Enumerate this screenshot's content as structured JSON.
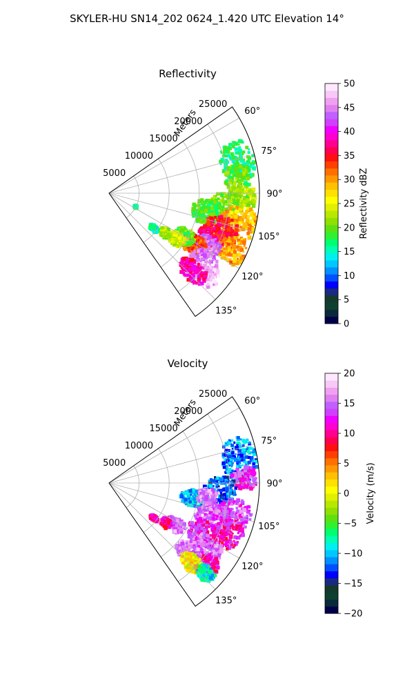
{
  "figure_title": "SKYLER-HU  SN14_202  0624_1.420 UTC Elevation 14°",
  "chart_data": [
    {
      "type": "heatmap",
      "title": "Reflectivity",
      "radial_axis_label": "Meters",
      "radial_ticks": [
        5000,
        10000,
        15000,
        20000,
        25000
      ],
      "radial_tick_labels": [
        "5000",
        "10000",
        "15000",
        "20000",
        "25000"
      ],
      "r_max": 25000,
      "azimuth_range": [
        55,
        145
      ],
      "azimuth_ticks": [
        60,
        75,
        90,
        105,
        120,
        135
      ],
      "azimuth_tick_labels": [
        "60°",
        "75°",
        "90°",
        "105°",
        "120°",
        "135°"
      ],
      "grid": true,
      "colorbar": {
        "label": "Reflectivity dBZ",
        "min": 0,
        "max": 50,
        "ticks": [
          0,
          5,
          10,
          15,
          20,
          25,
          30,
          35,
          40,
          45,
          50
        ],
        "tick_labels": [
          "0",
          "5",
          "10",
          "15",
          "20",
          "25",
          "30",
          "35",
          "40",
          "45",
          "50"
        ],
        "colors": [
          "#00004a",
          "#0a2a3a",
          "#0e4030",
          "#133a2a",
          "#1a2a80",
          "#0000ff",
          "#0050ff",
          "#0090ff",
          "#00c8ff",
          "#00f0f0",
          "#00ffb0",
          "#00ff70",
          "#30f030",
          "#60e010",
          "#90e000",
          "#b8e800",
          "#e0f000",
          "#ffff00",
          "#ffe000",
          "#ffc000",
          "#ff9800",
          "#ff7000",
          "#ff4000",
          "#ff1010",
          "#ff0050",
          "#ff0090",
          "#ff00d0",
          "#f000ff",
          "#d040ff",
          "#c060ff",
          "#e080f0",
          "#f0a0f0",
          "#f8c8f8",
          "#ffe8ff"
        ]
      },
      "blobs": [
        {
          "az": 76,
          "r": 22000,
          "dr": 3500,
          "da": 11,
          "v": 17
        },
        {
          "az": 84,
          "r": 21500,
          "dr": 2500,
          "da": 8,
          "v": 20
        },
        {
          "az": 92,
          "r": 22500,
          "dr": 2500,
          "da": 6,
          "v": 22
        },
        {
          "az": 97,
          "r": 19500,
          "dr": 3500,
          "da": 9,
          "v": 21
        },
        {
          "az": 101,
          "r": 16500,
          "dr": 3000,
          "da": 9,
          "v": 19
        },
        {
          "az": 103,
          "r": 22000,
          "dr": 4000,
          "da": 9,
          "v": 29
        },
        {
          "az": 108,
          "r": 19500,
          "dr": 3500,
          "da": 8,
          "v": 35
        },
        {
          "az": 113,
          "r": 18500,
          "dr": 3000,
          "da": 7,
          "v": 36
        },
        {
          "az": 115,
          "r": 22500,
          "dr": 3000,
          "da": 7,
          "v": 30
        },
        {
          "az": 118,
          "r": 18500,
          "dr": 2800,
          "da": 6,
          "v": 44
        },
        {
          "az": 121,
          "r": 16500,
          "dr": 2600,
          "da": 7,
          "v": 33
        },
        {
          "az": 126,
          "r": 19500,
          "dr": 3000,
          "da": 7,
          "v": 44
        },
        {
          "az": 130,
          "r": 21000,
          "dr": 3000,
          "da": 6,
          "v": 48
        },
        {
          "az": 133,
          "r": 19000,
          "dr": 3200,
          "da": 6,
          "v": 38
        },
        {
          "az": 120,
          "r": 14500,
          "dr": 2200,
          "da": 7,
          "v": 20
        },
        {
          "az": 124,
          "r": 13500,
          "dr": 2000,
          "da": 6,
          "v": 24
        },
        {
          "az": 125,
          "r": 11500,
          "dr": 1200,
          "da": 5,
          "v": 22
        },
        {
          "az": 128,
          "r": 9500,
          "dr": 1000,
          "da": 4,
          "v": 16
        },
        {
          "az": 117,
          "r": 5000,
          "dr": 300,
          "da": 3,
          "v": 16
        }
      ]
    },
    {
      "type": "heatmap",
      "title": "Velocity",
      "radial_axis_label": "Meters",
      "radial_ticks": [
        5000,
        10000,
        15000,
        20000,
        25000
      ],
      "radial_tick_labels": [
        "5000",
        "10000",
        "15000",
        "20000",
        "25000"
      ],
      "r_max": 25000,
      "azimuth_range": [
        55,
        145
      ],
      "azimuth_ticks": [
        60,
        75,
        90,
        105,
        120,
        135
      ],
      "azimuth_tick_labels": [
        "60°",
        "75°",
        "90°",
        "105°",
        "120°",
        "135°"
      ],
      "grid": true,
      "colorbar": {
        "label": "Velocity (m/s)",
        "min": -20,
        "max": 20,
        "ticks": [
          -20,
          -15,
          -10,
          -5,
          0,
          5,
          10,
          15,
          20
        ],
        "tick_labels": [
          "−20",
          "−15",
          "−10",
          "−5",
          "0",
          "5",
          "10",
          "15",
          "20"
        ],
        "colors": [
          "#00004a",
          "#0a2a3a",
          "#0e4030",
          "#133a2a",
          "#1a2a80",
          "#0000ff",
          "#0050ff",
          "#0090ff",
          "#00c8ff",
          "#00f0f0",
          "#00ffb0",
          "#00ff70",
          "#30f030",
          "#60e010",
          "#90e000",
          "#b8e800",
          "#e0f000",
          "#ffff00",
          "#ffe000",
          "#ffc000",
          "#ff9800",
          "#ff7000",
          "#ff4000",
          "#ff1010",
          "#ff0050",
          "#ff0090",
          "#ff00d0",
          "#f000ff",
          "#d040ff",
          "#c060ff",
          "#e080f0",
          "#f0a0f0",
          "#f8c8f8",
          "#ffe8ff"
        ]
      },
      "blobs": [
        {
          "az": 80,
          "r": 22000,
          "dr": 3500,
          "da": 12,
          "v": -11
        },
        {
          "az": 88,
          "r": 22500,
          "dr": 2500,
          "da": 6,
          "v": 13
        },
        {
          "az": 94,
          "r": 18500,
          "dr": 3500,
          "da": 9,
          "v": -12
        },
        {
          "az": 100,
          "r": 14500,
          "dr": 3000,
          "da": 7,
          "v": -10
        },
        {
          "az": 104,
          "r": 21500,
          "dr": 3500,
          "da": 8,
          "v": 14
        },
        {
          "az": 108,
          "r": 18000,
          "dr": 3500,
          "da": 8,
          "v": 15
        },
        {
          "az": 113,
          "r": 21500,
          "dr": 3000,
          "da": 8,
          "v": 11
        },
        {
          "az": 118,
          "r": 17500,
          "dr": 3000,
          "da": 8,
          "v": 12
        },
        {
          "az": 124,
          "r": 19500,
          "dr": 3500,
          "da": 8,
          "v": 15
        },
        {
          "az": 130,
          "r": 21000,
          "dr": 2800,
          "da": 6,
          "v": 11
        },
        {
          "az": 131,
          "r": 17500,
          "dr": 2800,
          "da": 6,
          "v": 16
        },
        {
          "az": 134,
          "r": 19000,
          "dr": 2500,
          "da": 5,
          "v": 1
        },
        {
          "az": 133,
          "r": 22000,
          "dr": 2000,
          "da": 4,
          "v": -8
        },
        {
          "az": 122,
          "r": 13000,
          "dr": 2200,
          "da": 6,
          "v": 15
        },
        {
          "az": 125,
          "r": 11500,
          "dr": 1200,
          "da": 5,
          "v": 10
        },
        {
          "az": 128,
          "r": 9500,
          "dr": 900,
          "da": 3,
          "v": 10
        },
        {
          "az": 98,
          "r": 16500,
          "dr": 2000,
          "da": 6,
          "v": 16
        }
      ]
    }
  ]
}
